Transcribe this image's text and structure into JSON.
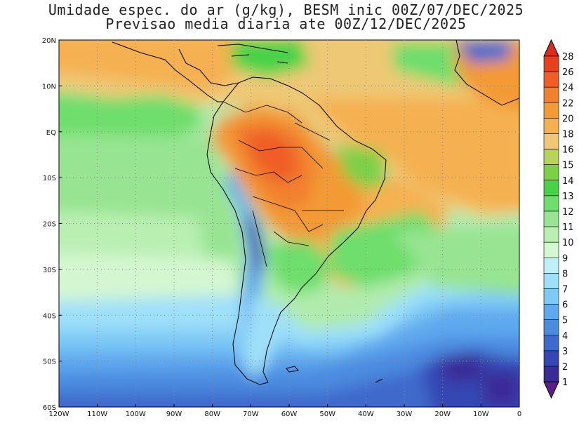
{
  "title": {
    "line1": "Umidade espec. do ar (g/kg), BESM inic 00Z/07/DEC/2025",
    "line2": "Previsao media diaria ate 00Z/12/DEC/2025"
  },
  "map": {
    "lon_range": [
      -120,
      0
    ],
    "lat_range": [
      -60,
      20
    ],
    "lon_labels": [
      "120W",
      "110W",
      "100W",
      "90W",
      "80W",
      "70W",
      "60W",
      "50W",
      "40W",
      "30W",
      "20W",
      "10W",
      "0"
    ],
    "lat_labels": [
      "20N",
      "10N",
      "EQ",
      "10S",
      "20S",
      "30S",
      "40S",
      "50S",
      "60S"
    ],
    "gridlines": "dotted",
    "coastlines": true
  },
  "colorbar": {
    "levels": [
      "28",
      "26",
      "24",
      "22",
      "20",
      "18",
      "16",
      "15",
      "14",
      "13",
      "12",
      "11",
      "10",
      "9",
      "8",
      "7",
      "6",
      "5",
      "4",
      "3",
      "2",
      "1"
    ],
    "colors": {
      "over": "#dc2a1e",
      "28-26": "#e8401f",
      "26-24": "#f05d27",
      "24-22": "#f2802f",
      "22-20": "#f39a35",
      "20-18": "#f5b151",
      "18-16": "#eec874",
      "16-15": "#b9d35a",
      "15-14": "#7cd046",
      "14-13": "#48d248",
      "13-12": "#6ede6c",
      "12-11": "#97e492",
      "11-10": "#baefb2",
      "10-9": "#d4f7d1",
      "9-8": "#bff0f8",
      "8-7": "#9fe0f9",
      "7-6": "#7ec9f6",
      "6-5": "#5ea9ef",
      "5-4": "#4b8be0",
      "4-3": "#3f69cc",
      "3-2": "#3646b2",
      "2-1": "#3a2a98",
      "under": "#5a1f8c"
    }
  }
}
